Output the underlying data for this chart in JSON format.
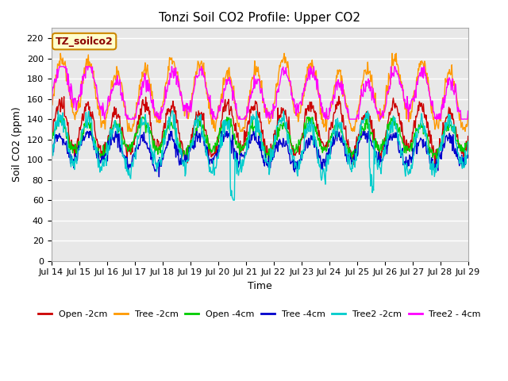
{
  "title": "Tonzi Soil CO2 Profile: Upper CO2",
  "ylabel": "Soil CO2 (ppm)",
  "xlabel": "Time",
  "annotation": "TZ_soilco2",
  "ylim": [
    0,
    230
  ],
  "yticks": [
    0,
    20,
    40,
    60,
    80,
    100,
    120,
    140,
    160,
    180,
    200,
    220
  ],
  "xtick_labels": [
    "Jul 14",
    "Jul 15",
    "Jul 16",
    "Jul 17",
    "Jul 18",
    "Jul 19",
    "Jul 20",
    "Jul 21",
    "Jul 22",
    "Jul 23",
    "Jul 24",
    "Jul 25",
    "Jul 26",
    "Jul 27",
    "Jul 28",
    "Jul 29"
  ],
  "series": [
    {
      "name": "Open -2cm",
      "color": "#cc0000"
    },
    {
      "name": "Tree -2cm",
      "color": "#ff9900"
    },
    {
      "name": "Open -4cm",
      "color": "#00cc00"
    },
    {
      "name": "Tree -4cm",
      "color": "#0000cc"
    },
    {
      "name": "Tree2 -2cm",
      "color": "#00cccc"
    },
    {
      "name": "Tree2 - 4cm",
      "color": "#ff00ff"
    }
  ],
  "fig_bg_color": "#ffffff",
  "plot_bg_color": "#e8e8e8",
  "grid_color": "#ffffff",
  "title_fontsize": 11,
  "label_fontsize": 9,
  "tick_fontsize": 8,
  "legend_fontsize": 8
}
